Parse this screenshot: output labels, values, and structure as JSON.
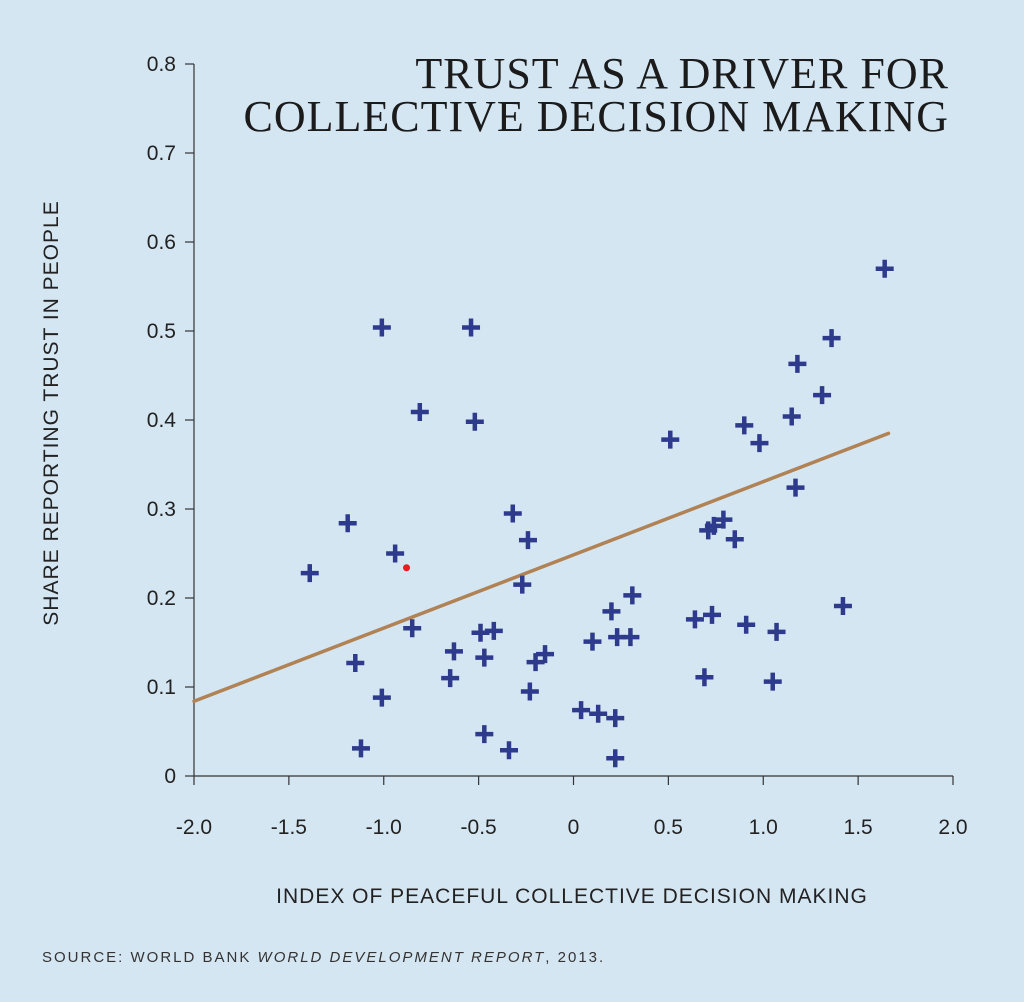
{
  "chart_data": {
    "type": "scatter",
    "title_lines": [
      "TRUST AS A DRIVER FOR",
      "COLLECTIVE DECISION MAKING"
    ],
    "xlabel": "INDEX OF PEACEFUL COLLECTIVE DECISION MAKING",
    "ylabel": "SHARE REPORTING TRUST IN PEOPLE",
    "xlim": [
      -2.0,
      2.0
    ],
    "ylim": [
      0,
      0.8
    ],
    "x_ticks": [
      -2.0,
      -1.5,
      -1.0,
      -0.5,
      0,
      0.5,
      1.0,
      1.5,
      2.0
    ],
    "x_tick_labels": [
      "-2.0",
      "-1.5",
      "-1.0",
      "-0.5",
      "0",
      "0.5",
      "1.0",
      "1.5",
      "2.0"
    ],
    "y_ticks": [
      0,
      0.1,
      0.2,
      0.3,
      0.4,
      0.5,
      0.6,
      0.7,
      0.8
    ],
    "y_tick_labels": [
      "0",
      "0.1",
      "0.2",
      "0.3",
      "0.4",
      "0.5",
      "0.6",
      "0.7",
      "0.8"
    ],
    "grid": false,
    "marker_color": "#2e3a8c",
    "trend_color": "#b08254",
    "highlight_color": "#e02020",
    "points": [
      {
        "x": -1.39,
        "y": 0.228
      },
      {
        "x": -1.19,
        "y": 0.284
      },
      {
        "x": -1.15,
        "y": 0.127
      },
      {
        "x": -1.12,
        "y": 0.031
      },
      {
        "x": -1.01,
        "y": 0.088
      },
      {
        "x": -1.01,
        "y": 0.504
      },
      {
        "x": -0.94,
        "y": 0.25
      },
      {
        "x": -0.85,
        "y": 0.166
      },
      {
        "x": -0.81,
        "y": 0.409
      },
      {
        "x": -0.65,
        "y": 0.11
      },
      {
        "x": -0.63,
        "y": 0.14
      },
      {
        "x": -0.54,
        "y": 0.504
      },
      {
        "x": -0.52,
        "y": 0.398
      },
      {
        "x": -0.49,
        "y": 0.161
      },
      {
        "x": -0.47,
        "y": 0.133
      },
      {
        "x": -0.47,
        "y": 0.047
      },
      {
        "x": -0.42,
        "y": 0.163
      },
      {
        "x": -0.34,
        "y": 0.029
      },
      {
        "x": -0.32,
        "y": 0.295
      },
      {
        "x": -0.27,
        "y": 0.215
      },
      {
        "x": -0.24,
        "y": 0.265
      },
      {
        "x": -0.23,
        "y": 0.095
      },
      {
        "x": -0.2,
        "y": 0.128
      },
      {
        "x": -0.15,
        "y": 0.137
      },
      {
        "x": 0.04,
        "y": 0.074
      },
      {
        "x": 0.1,
        "y": 0.151
      },
      {
        "x": 0.13,
        "y": 0.07
      },
      {
        "x": 0.2,
        "y": 0.185
      },
      {
        "x": 0.22,
        "y": 0.065
      },
      {
        "x": 0.22,
        "y": 0.02
      },
      {
        "x": 0.23,
        "y": 0.156
      },
      {
        "x": 0.3,
        "y": 0.156
      },
      {
        "x": 0.31,
        "y": 0.203
      },
      {
        "x": 0.51,
        "y": 0.378
      },
      {
        "x": 0.64,
        "y": 0.176
      },
      {
        "x": 0.69,
        "y": 0.111
      },
      {
        "x": 0.71,
        "y": 0.276
      },
      {
        "x": 0.73,
        "y": 0.181
      },
      {
        "x": 0.74,
        "y": 0.281
      },
      {
        "x": 0.79,
        "y": 0.288
      },
      {
        "x": 0.85,
        "y": 0.266
      },
      {
        "x": 0.9,
        "y": 0.394
      },
      {
        "x": 0.91,
        "y": 0.17
      },
      {
        "x": 0.98,
        "y": 0.374
      },
      {
        "x": 1.05,
        "y": 0.106
      },
      {
        "x": 1.07,
        "y": 0.162
      },
      {
        "x": 1.15,
        "y": 0.404
      },
      {
        "x": 1.17,
        "y": 0.324
      },
      {
        "x": 1.18,
        "y": 0.463
      },
      {
        "x": 1.31,
        "y": 0.428
      },
      {
        "x": 1.36,
        "y": 0.492
      },
      {
        "x": 1.42,
        "y": 0.191
      },
      {
        "x": 1.64,
        "y": 0.57
      }
    ],
    "highlight_point": {
      "x": -0.88,
      "y": 0.234
    },
    "trend_line": {
      "x": [
        -2.0,
        1.66
      ],
      "y": [
        0.084,
        0.385
      ]
    }
  },
  "source": {
    "prefix": "SOURCE: WORLD BANK ",
    "title": "WORLD DEVELOPMENT REPORT",
    "suffix": ", 2013."
  }
}
